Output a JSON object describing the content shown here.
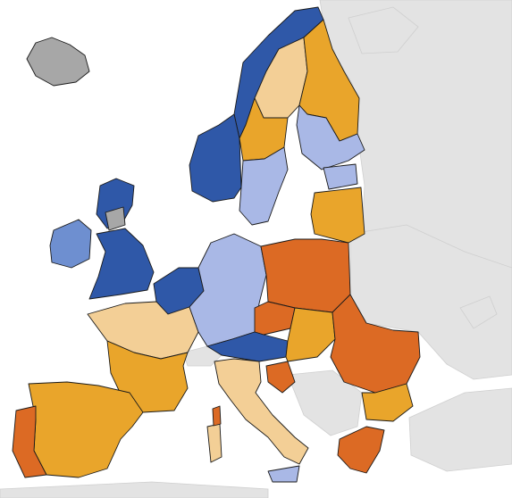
{
  "map": {
    "palette": {
      "dark_blue": "#2f58a8",
      "mid_blue": "#6e8fd0",
      "light_blue": "#a9b8e6",
      "peach": "#f3cf96",
      "gold": "#e9a52b",
      "dark_orange": "#dc6a24",
      "no_data": "#a7a7a7",
      "non_member": "#e3e3e3",
      "sea": "#ffffff",
      "border": "#1a1a1a"
    },
    "regions": [
      {
        "id": "iceland",
        "category": "no_data"
      },
      {
        "id": "norway-north",
        "category": "dark_blue"
      },
      {
        "id": "norway-south",
        "category": "dark_blue"
      },
      {
        "id": "sweden-north",
        "category": "peach"
      },
      {
        "id": "sweden-central",
        "category": "gold"
      },
      {
        "id": "sweden-south",
        "category": "light_blue"
      },
      {
        "id": "finland-north",
        "category": "gold"
      },
      {
        "id": "finland-south",
        "category": "light_blue"
      },
      {
        "id": "estonia",
        "category": "light_blue"
      },
      {
        "id": "latvia-lithuania",
        "category": "gold"
      },
      {
        "id": "ireland",
        "category": "mid_blue"
      },
      {
        "id": "scotland",
        "category": "dark_blue"
      },
      {
        "id": "england",
        "category": "dark_blue"
      },
      {
        "id": "benelux",
        "category": "dark_blue"
      },
      {
        "id": "france-north",
        "category": "peach"
      },
      {
        "id": "france-south",
        "category": "gold"
      },
      {
        "id": "germany",
        "category": "light_blue"
      },
      {
        "id": "poland",
        "category": "dark_orange"
      },
      {
        "id": "czechia",
        "category": "dark_orange"
      },
      {
        "id": "alps",
        "category": "dark_blue"
      },
      {
        "id": "hungary-slovakia",
        "category": "gold"
      },
      {
        "id": "romania",
        "category": "dark_orange"
      },
      {
        "id": "bulgaria",
        "category": "gold"
      },
      {
        "id": "italy",
        "category": "peach"
      },
      {
        "id": "spain",
        "category": "gold"
      },
      {
        "id": "portugal",
        "category": "dark_orange"
      },
      {
        "id": "greece",
        "category": "dark_orange"
      }
    ]
  }
}
